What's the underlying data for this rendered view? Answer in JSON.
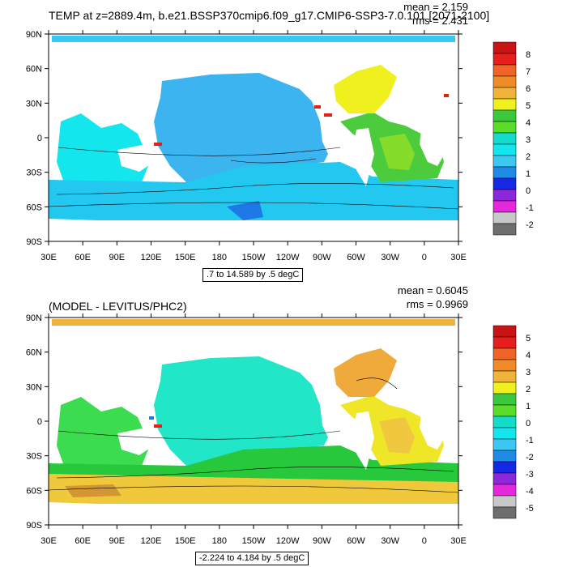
{
  "panels": [
    {
      "title": "TEMP at z=2889.4m, b.e21.BSSP370cmip6.f09_g17.CMIP6-SSP3-7.0.101 [2071-2100]",
      "mean_text": "mean = 2.159",
      "rms_text": "rms = 2.431",
      "range_note": ".7 to 14.589 by .5 degC",
      "lat_labels": [
        "90N",
        "60N",
        "30N",
        "0",
        "30S",
        "60S",
        "90S"
      ],
      "lon_labels": [
        "30E",
        "60E",
        "90E",
        "120E",
        "150E",
        "180",
        "150W",
        "120W",
        "90W",
        "60W",
        "30W",
        "0",
        "30E"
      ],
      "colorbar_labels": [
        "8",
        "7",
        "6",
        "5",
        "4",
        "3",
        "2",
        "1",
        "0",
        "-1",
        "-2"
      ],
      "colors": {
        "ocean_main": "#3bb4f0",
        "ocean_south": "#22c8f0",
        "ocean_indian": "#14e6ee",
        "ocean_polar": "#34d2f8",
        "ocean_atlantic": "#4ccc3c",
        "ocean_atl_south": "#86dc2a",
        "ocean_deep_blue": "#1e78e6",
        "north_atlantic": "#f0f01e",
        "arctic": "#38c8f5",
        "hot_spot": "#e61e14"
      }
    },
    {
      "title": "(MODEL - LEVITUS/PHC2)",
      "mean_text": "mean = 0.6045",
      "rms_text": "rms = 0.9969",
      "range_note": "-2.224 to 4.184 by .5 degC",
      "lat_labels": [
        "90N",
        "60N",
        "30N",
        "0",
        "30S",
        "60S",
        "90S"
      ],
      "lon_labels": [
        "30E",
        "60E",
        "90E",
        "120E",
        "150E",
        "180",
        "150W",
        "120W",
        "90W",
        "60W",
        "30W",
        "0",
        "30E"
      ],
      "colorbar_labels": [
        "5",
        "4",
        "3",
        "2",
        "1",
        "0",
        "-1",
        "-2",
        "-3",
        "-4",
        "-5"
      ],
      "colors": {
        "ocean_main": "#22e6c8",
        "ocean_south": "#28c83c",
        "ocean_indian": "#3cdc50",
        "ocean_polar": "#f0c83c",
        "ocean_atlantic": "#f0e628",
        "ocean_atl_south": "#f0c840",
        "ocean_deep_blue": "#d29632",
        "north_atlantic": "#f0aa3c",
        "arctic": "#f0b43c",
        "hot_spot": "#e61e14"
      }
    }
  ],
  "colorbar_swatches": [
    "#c81414",
    "#e61e1e",
    "#f06428",
    "#f08c28",
    "#f0b43c",
    "#f0f01e",
    "#3cc83c",
    "#5adc28",
    "#14dcc8",
    "#14e6f0",
    "#3cc8f0",
    "#1e8ce6",
    "#1428e6",
    "#8c28dc",
    "#e628dc",
    "#c8c8c8",
    "#6e6e6e"
  ]
}
